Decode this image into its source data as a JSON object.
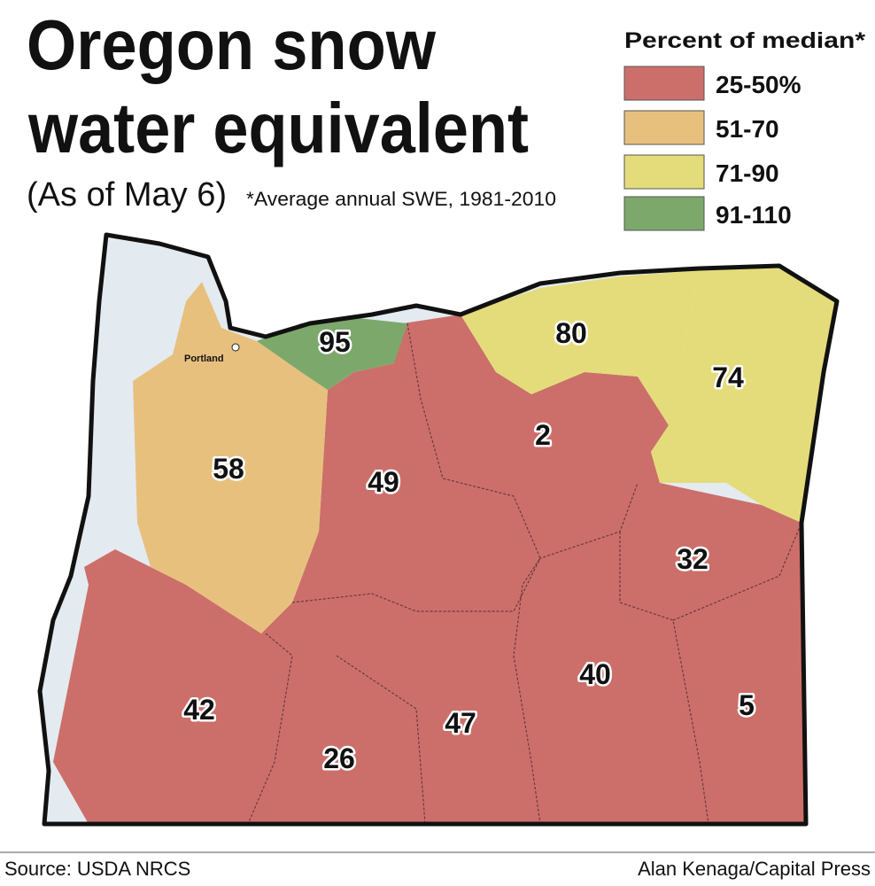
{
  "header": {
    "title_line1": "Oregon snow",
    "title_line2": "water equivalent",
    "subtitle": "(As of May 6)",
    "note": "*Average annual SWE, 1981-2010"
  },
  "legend": {
    "title": "Percent of median*",
    "items": [
      {
        "label": "25-50%",
        "color": "#cc6f6a"
      },
      {
        "label": "51-70",
        "color": "#e8c07e"
      },
      {
        "label": "71-90",
        "color": "#e4dc7a"
      },
      {
        "label": "91-110",
        "color": "#7da86c"
      }
    ]
  },
  "map": {
    "city": "Portland",
    "regions": [
      "95",
      "80",
      "74",
      "58",
      "2",
      "49",
      "32",
      "40",
      "5",
      "42",
      "47",
      "26"
    ]
  },
  "footer": {
    "source": "Source: USDA NRCS",
    "credit": "Alan Kenaga/Capital Press"
  }
}
